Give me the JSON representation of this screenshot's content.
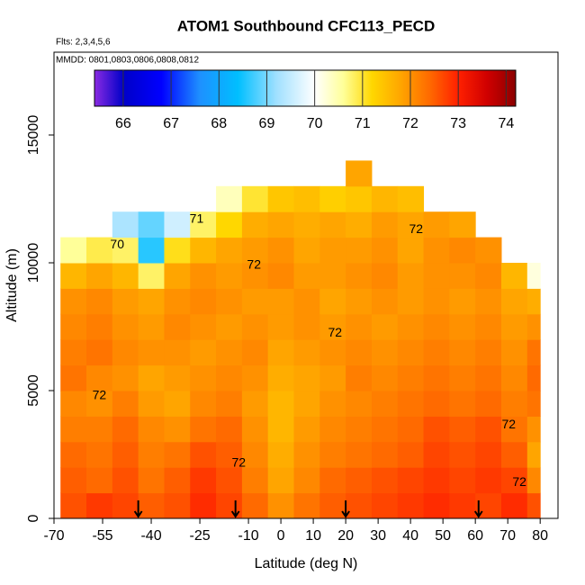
{
  "chart_data": {
    "type": "heatmap",
    "title": "ATOM1 Southbound CFC113_PECD",
    "subtitle": "Flts: 2,3,4,5,6",
    "annotation": "MMDD: 0801,0803,0806,0808,0812",
    "x_label": "Latitude (deg N)",
    "y_label": "Altitude (m)",
    "xlim": [
      -70,
      85.5
    ],
    "ylim": [
      0,
      18240
    ],
    "xticks": [
      -70,
      -55,
      -40,
      -25,
      -10,
      0,
      10,
      20,
      30,
      40,
      50,
      60,
      70,
      80
    ],
    "yticks": [
      0,
      5000,
      10000,
      15000
    ],
    "x_edges": [
      -68,
      -60,
      -52,
      -44,
      -36,
      -28,
      -20,
      -12,
      -4,
      4,
      12,
      20,
      28,
      36,
      44,
      52,
      60,
      68,
      76,
      80
    ],
    "y_edges": [
      0,
      1000,
      2000,
      3000,
      4000,
      5000,
      6000,
      7000,
      8000,
      9000,
      10000,
      11000,
      12000,
      13000,
      14000
    ],
    "z": [
      [
        72.6,
        72.8,
        72.7,
        72.5,
        72.6,
        72.9,
        72.7,
        72.4,
        72.0,
        72.3,
        72.5,
        72.6,
        72.7,
        72.8,
        72.9,
        72.8,
        72.7,
        72.9,
        72.6
      ],
      [
        72.5,
        72.4,
        72.6,
        72.3,
        72.5,
        72.8,
        72.6,
        72.2,
        71.8,
        72.1,
        72.4,
        72.5,
        72.6,
        72.7,
        72.8,
        72.7,
        72.8,
        72.7,
        72.1
      ],
      [
        72.4,
        72.3,
        72.5,
        72.2,
        72.3,
        72.6,
        72.5,
        72.1,
        71.7,
        72.0,
        72.2,
        72.3,
        72.4,
        72.5,
        72.7,
        72.6,
        72.7,
        72.5,
        71.8
      ],
      [
        72.2,
        72.2,
        72.4,
        72.1,
        72.0,
        72.3,
        72.4,
        72.0,
        71.6,
        71.9,
        72.1,
        72.2,
        72.3,
        72.4,
        72.6,
        72.5,
        72.6,
        72.3,
        72.0
      ],
      [
        72.1,
        72.0,
        72.2,
        71.9,
        71.8,
        72.1,
        72.2,
        71.9,
        71.6,
        71.8,
        72.0,
        72.1,
        72.2,
        72.3,
        72.4,
        72.3,
        72.4,
        72.2,
        72.3
      ],
      [
        72.3,
        72.1,
        72.0,
        71.8,
        71.9,
        72.0,
        72.1,
        72.0,
        71.7,
        71.8,
        71.9,
        72.2,
        72.1,
        72.2,
        72.3,
        72.2,
        72.3,
        72.1,
        72.4
      ],
      [
        72.2,
        72.3,
        72.1,
        72.0,
        72.0,
        71.9,
        72.0,
        72.1,
        71.8,
        71.9,
        72.0,
        72.1,
        72.0,
        72.1,
        72.2,
        72.1,
        72.2,
        72.0,
        72.3
      ],
      [
        72.1,
        72.2,
        72.0,
        71.9,
        72.1,
        72.0,
        71.9,
        72.0,
        71.9,
        72.0,
        71.9,
        72.0,
        71.9,
        72.0,
        72.1,
        72.0,
        72.1,
        71.9,
        72.0
      ],
      [
        72.0,
        72.1,
        71.9,
        71.8,
        72.0,
        72.1,
        72.0,
        71.9,
        71.9,
        72.0,
        71.8,
        71.9,
        72.0,
        71.9,
        72.0,
        71.9,
        72.0,
        71.8,
        71.7
      ],
      [
        71.6,
        71.8,
        71.6,
        70.8,
        71.8,
        72.0,
        71.9,
        72.0,
        72.1,
        71.9,
        71.9,
        72.0,
        72.1,
        71.9,
        72.0,
        72.0,
        72.1,
        71.6,
        70.2
      ],
      [
        70.6,
        70.9,
        70.8,
        68.6,
        71.1,
        71.6,
        71.8,
        71.9,
        72.0,
        71.8,
        71.9,
        71.9,
        72.0,
        71.8,
        72.0,
        72.1,
        72.0,
        null,
        null
      ],
      [
        null,
        null,
        69.3,
        68.9,
        69.6,
        70.8,
        71.2,
        71.7,
        71.8,
        71.7,
        71.8,
        71.7,
        71.9,
        71.8,
        71.9,
        71.8,
        null,
        null,
        null
      ],
      [
        null,
        null,
        null,
        null,
        null,
        null,
        70.4,
        71.0,
        71.4,
        71.5,
        71.3,
        71.4,
        71.6,
        71.5,
        null,
        null,
        null,
        null,
        null
      ],
      [
        null,
        null,
        null,
        null,
        null,
        null,
        null,
        null,
        null,
        null,
        null,
        71.8,
        null,
        null,
        null,
        null,
        null,
        null,
        null
      ]
    ],
    "zlim": [
      65.4,
      74.2
    ],
    "zticks": [
      66,
      67,
      68,
      69,
      70,
      71,
      72,
      73,
      74
    ],
    "colorscale": [
      [
        65.4,
        "#8a2be2"
      ],
      [
        66.0,
        "#0000c8"
      ],
      [
        66.8,
        "#0000ff"
      ],
      [
        67.6,
        "#1e90ff"
      ],
      [
        68.4,
        "#00bfff"
      ],
      [
        69.2,
        "#a0e0ff"
      ],
      [
        70.0,
        "#ffffff"
      ],
      [
        70.6,
        "#ffff99"
      ],
      [
        71.2,
        "#ffd700"
      ],
      [
        71.8,
        "#ffa500"
      ],
      [
        72.4,
        "#ff6a00"
      ],
      [
        73.0,
        "#ff2000"
      ],
      [
        73.6,
        "#d00000"
      ],
      [
        74.2,
        "#8b0000"
      ]
    ],
    "contour_labels": [
      {
        "label": "72",
        "x": 41.7,
        "y": 11300
      },
      {
        "label": "71",
        "x": -26,
        "y": 11700
      },
      {
        "label": "70",
        "x": -50.5,
        "y": 10700
      },
      {
        "label": "72",
        "x": -8.3,
        "y": 9900
      },
      {
        "label": "72",
        "x": 16.7,
        "y": 7250
      },
      {
        "label": "72",
        "x": -56,
        "y": 4800
      },
      {
        "label": "72",
        "x": -13,
        "y": 2150
      },
      {
        "label": "72",
        "x": 70.3,
        "y": 3660
      },
      {
        "label": "72",
        "x": 73.6,
        "y": 1400
      }
    ],
    "arrows": [
      -44,
      -14,
      20,
      61
    ]
  }
}
